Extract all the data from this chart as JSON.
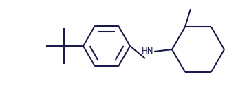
{
  "bg_color": "#ffffff",
  "line_color": "#1a1a4a",
  "line_width": 1.5,
  "figsize": [
    3.46,
    1.5
  ],
  "dpi": 100,
  "hn_text": "HN",
  "hn_color": "#1a1a4a",
  "hn_fontsize": 8.5
}
